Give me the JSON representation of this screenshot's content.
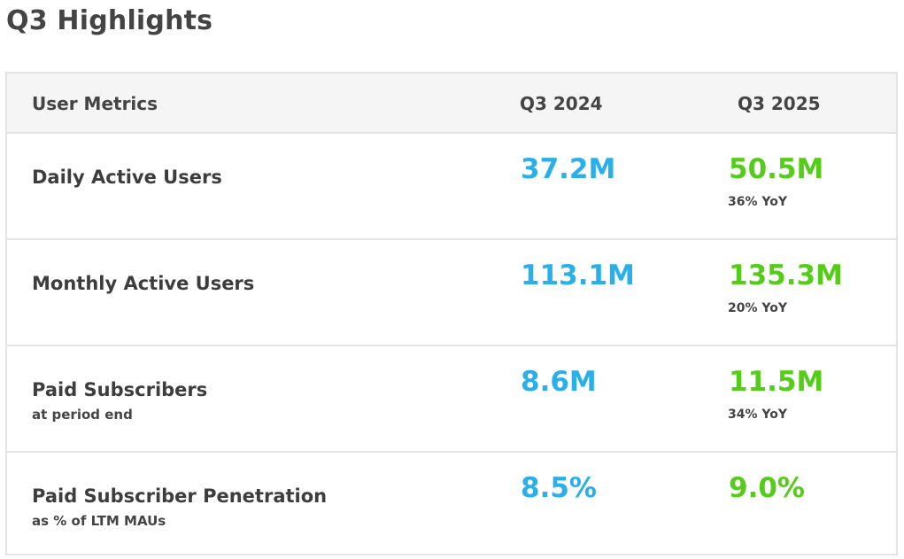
{
  "page": {
    "title": "Q3 Highlights"
  },
  "table": {
    "headers": {
      "metric": "User Metrics",
      "prev": "Q3 2024",
      "curr": "Q3 2025"
    },
    "rows": [
      {
        "label": "Daily Active Users",
        "sublabel": "",
        "prev": "37.2M",
        "curr": "50.5M",
        "yoy": "36% YoY"
      },
      {
        "label": "Monthly Active Users",
        "sublabel": "",
        "prev": "113.1M",
        "curr": "135.3M",
        "yoy": "20% YoY"
      },
      {
        "label": "Paid Subscribers",
        "sublabel": "at period end",
        "prev": "8.6M",
        "curr": "11.5M",
        "yoy": "34% YoY"
      },
      {
        "label": "Paid Subscriber Penetration",
        "sublabel": "as % of LTM MAUs",
        "prev": "8.5%",
        "curr": "9.0%",
        "yoy": ""
      }
    ]
  },
  "colors": {
    "prev_value": "#29b0ea",
    "curr_value": "#55cc1a",
    "header_bg": "#f5f5f5",
    "border": "#e3e3e3"
  }
}
